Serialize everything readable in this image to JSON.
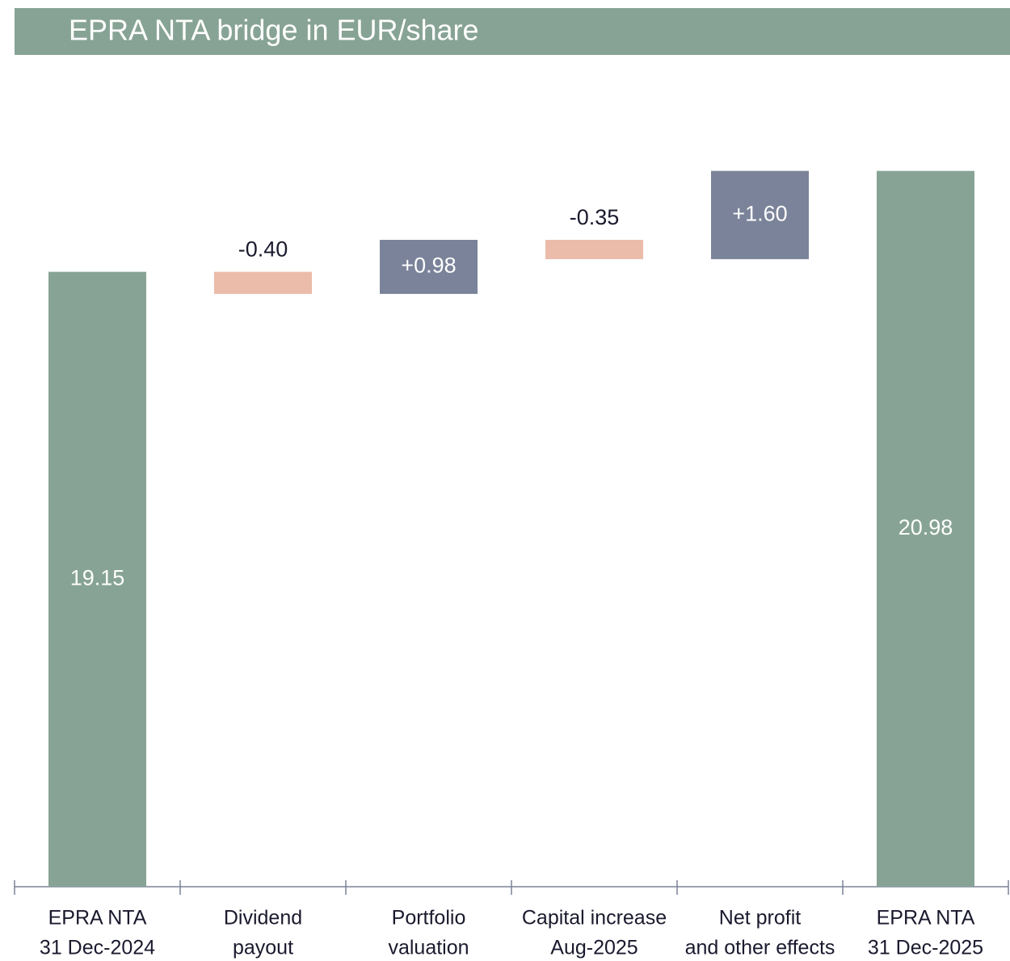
{
  "chart_data": {
    "type": "waterfall",
    "title": "EPRA NTA bridge in EUR/share",
    "categories": [
      [
        "EPRA NTA",
        "31 Dec-2024"
      ],
      [
        "Dividend",
        "payout"
      ],
      [
        "Portfolio",
        "valuation"
      ],
      [
        "Capital increase",
        "Aug-2025"
      ],
      [
        "Net profit",
        "and other effects"
      ],
      [
        "EPRA NTA",
        "31 Dec-2025"
      ]
    ],
    "values": [
      19.15,
      -0.4,
      0.98,
      -0.35,
      1.6,
      20.98
    ],
    "value_labels": [
      "19.15",
      "-0.40",
      "+0.98",
      "-0.35",
      "+1.60",
      "20.98"
    ],
    "measure": [
      "absolute",
      "relative",
      "relative",
      "relative",
      "relative",
      "absolute"
    ],
    "colors": {
      "total": "#87a395",
      "increase": "#7a8399",
      "decrease": "#ebbcaa"
    },
    "ylim": [
      8,
      22
    ]
  }
}
